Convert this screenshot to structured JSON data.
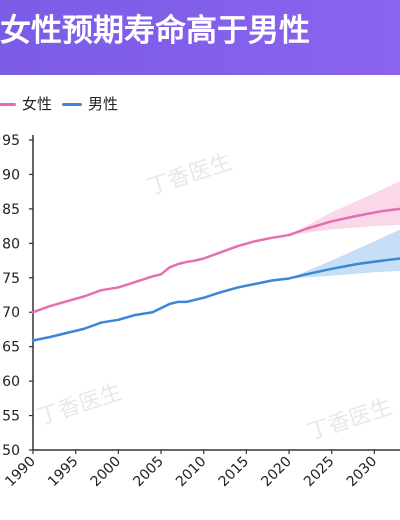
{
  "header": {
    "title": "女性预期寿命高于男性"
  },
  "legend": {
    "female_label": "女性",
    "male_label": "男性"
  },
  "watermark": {
    "text": "丁香医生"
  },
  "colors": {
    "header": "#7b5ce6",
    "female": "#e46fb0",
    "female_band": "#f7c3dd",
    "male": "#3a86d8",
    "male_band": "#a9cdf2",
    "watermark": "#d6d6d6"
  },
  "chart_data": {
    "type": "line",
    "title": "女性预期寿命高于男性",
    "xlabel": "",
    "ylabel": "",
    "xlim": [
      1990,
      2033
    ],
    "ylim": [
      50,
      95
    ],
    "x_ticks": [
      1990,
      1995,
      2000,
      2005,
      2010,
      2015,
      2020,
      2025,
      2030
    ],
    "y_ticks": [
      50,
      55,
      60,
      65,
      70,
      75,
      80,
      85,
      90,
      95
    ],
    "grid": false,
    "legend_position": "top-left",
    "series": [
      {
        "name": "女性",
        "x": [
          1990,
          1992,
          1994,
          1996,
          1998,
          2000,
          2002,
          2004,
          2005,
          2006,
          2007,
          2008,
          2009,
          2010,
          2012,
          2014,
          2016,
          2018,
          2020,
          2022,
          2025,
          2028,
          2031,
          2033
        ],
        "y": [
          70.0,
          70.9,
          71.6,
          72.3,
          73.2,
          73.6,
          74.4,
          75.2,
          75.5,
          76.5,
          77.0,
          77.3,
          77.5,
          77.8,
          78.7,
          79.6,
          80.3,
          80.8,
          81.2,
          82.1,
          83.2,
          84.0,
          84.7,
          85.0
        ]
      },
      {
        "name": "男性",
        "x": [
          1990,
          1992,
          1994,
          1996,
          1998,
          2000,
          2002,
          2004,
          2005,
          2006,
          2007,
          2008,
          2009,
          2010,
          2012,
          2014,
          2016,
          2018,
          2020,
          2022,
          2025,
          2028,
          2031,
          2033
        ],
        "y": [
          65.9,
          66.4,
          67.0,
          67.6,
          68.5,
          68.9,
          69.6,
          70.0,
          70.6,
          71.2,
          71.5,
          71.5,
          71.8,
          72.1,
          72.9,
          73.6,
          74.1,
          74.6,
          74.9,
          75.5,
          76.3,
          77.0,
          77.5,
          77.8
        ]
      }
    ],
    "projection_bands": [
      {
        "series": "女性",
        "x": [
          2020,
          2025,
          2030,
          2033
        ],
        "lower": [
          81.2,
          82.0,
          82.5,
          82.7
        ],
        "upper": [
          81.2,
          84.5,
          87.3,
          89.0
        ]
      },
      {
        "series": "男性",
        "x": [
          2020,
          2025,
          2030,
          2033
        ],
        "lower": [
          74.9,
          75.3,
          75.8,
          76.0
        ],
        "upper": [
          74.9,
          77.5,
          80.3,
          82.0
        ]
      }
    ]
  }
}
